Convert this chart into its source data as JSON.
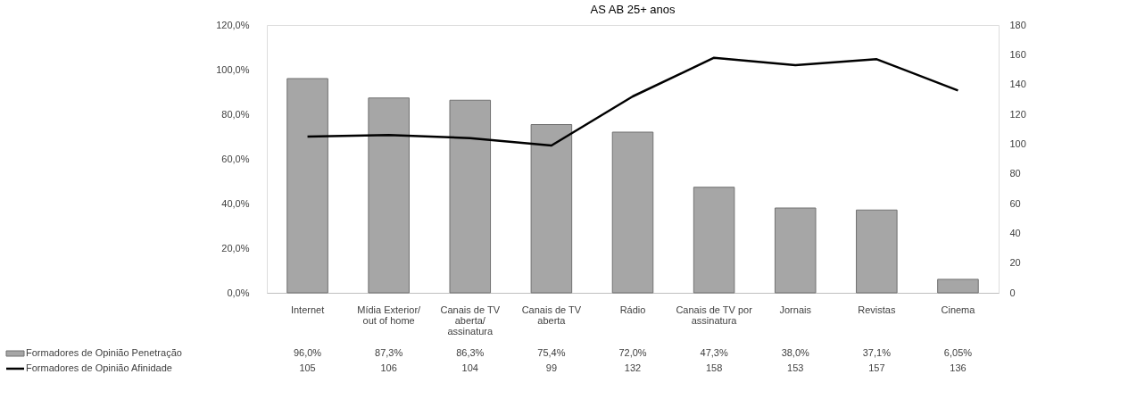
{
  "chart_data": {
    "type": "bar",
    "title": "AS AB 25+ anos",
    "categories": [
      "Internet",
      "Mídia Exterior/ out of home",
      "Canais de TV aberta/ assinatura",
      "Canais de TV aberta",
      "Rádio",
      "Canais de TV por assinatura",
      "Jornais",
      "Revistas",
      "Cinema"
    ],
    "series": [
      {
        "name": "Formadores de Opinião Penetração",
        "color": "#a6a6a6",
        "values": [
          96.0,
          87.3,
          86.3,
          75.4,
          72.0,
          47.3,
          38.0,
          37.1,
          6.05
        ],
        "value_labels": [
          "96,0%",
          "87,3%",
          "86,3%",
          "75,4%",
          "72,0%",
          "47,3%",
          "38,0%",
          "37,1%",
          "6,05%"
        ]
      },
      {
        "name": "Formadores de Opinião Afinidade",
        "type": "line",
        "axis": "y2",
        "color": "#000000",
        "values": [
          105,
          106,
          104,
          99,
          132,
          158,
          153,
          157,
          136
        ],
        "value_labels": [
          "105",
          "106",
          "104",
          "99",
          "132",
          "158",
          "153",
          "157",
          "136"
        ]
      }
    ],
    "ylim": [
      0,
      120
    ],
    "yticks": [
      {
        "value": 0,
        "label": "0,0%"
      },
      {
        "value": 20,
        "label": "20,0%"
      },
      {
        "value": 40,
        "label": "40,0%"
      },
      {
        "value": 60,
        "label": "60,0%"
      },
      {
        "value": 80,
        "label": "80,0%"
      },
      {
        "value": 100,
        "label": "100,0%"
      },
      {
        "value": 120,
        "label": "120,0%"
      }
    ],
    "y2lim": [
      0,
      180
    ],
    "y2ticks": [
      0,
      20,
      40,
      60,
      80,
      100,
      120,
      140,
      160,
      180
    ],
    "grid": false,
    "legend": "bottom",
    "marker": "none",
    "line_style": "solid"
  }
}
